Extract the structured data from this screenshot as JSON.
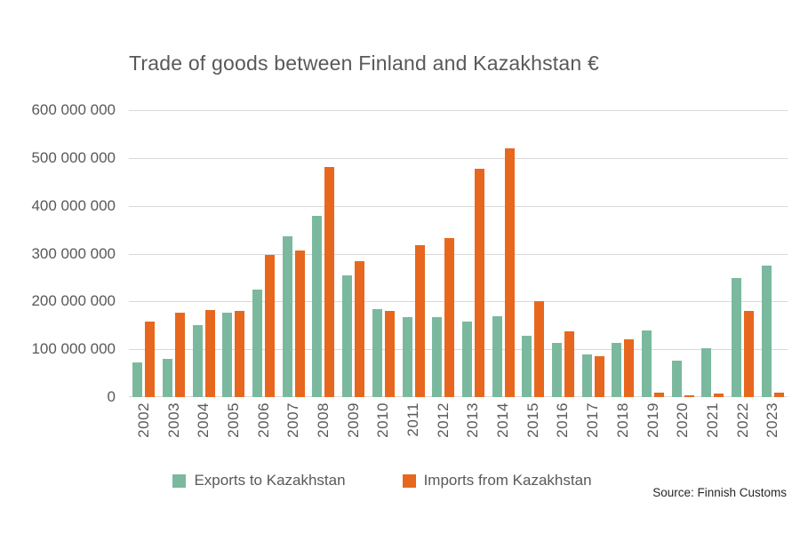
{
  "title": "Trade of goods between Finland and Kazakhstan €",
  "source_note": "Source: Finnish Customs",
  "colors": {
    "exports": "#7ab99e",
    "imports": "#e8671e",
    "gridline": "#d9d9d9",
    "text_gray": "#595959",
    "source_text": "#262626"
  },
  "legend": {
    "items": [
      {
        "label": "Exports to Kazakhstan",
        "color": "#7ab99e"
      },
      {
        "label": "Imports from Kazakhstan",
        "color": "#e8671e"
      }
    ],
    "position": "bottom"
  },
  "chart_data": {
    "type": "bar",
    "title": "Trade of goods between Finland and Kazakhstan €",
    "xlabel": "",
    "ylabel": "",
    "ylim": [
      0,
      600000000
    ],
    "grid": true,
    "legend_position": "bottom",
    "yticks": [
      {
        "value": 0,
        "label": "0"
      },
      {
        "value": 100000000,
        "label": "100 000 000"
      },
      {
        "value": 200000000,
        "label": "200 000 000"
      },
      {
        "value": 300000000,
        "label": "300 000 000"
      },
      {
        "value": 400000000,
        "label": "400 000 000"
      },
      {
        "value": 500000000,
        "label": "500 000 000"
      },
      {
        "value": 600000000,
        "label": "600 000 000"
      }
    ],
    "categories": [
      "2002",
      "2003",
      "2004",
      "2005",
      "2006",
      "2007",
      "2008",
      "2009",
      "2010",
      "2011",
      "2012",
      "2013",
      "2014",
      "2015",
      "2016",
      "2017",
      "2018",
      "2019",
      "2020",
      "2021",
      "2022",
      "2023"
    ],
    "series": [
      {
        "name": "Exports to Kazakhstan",
        "color": "#7ab99e",
        "values": [
          72000000,
          80000000,
          151000000,
          176000000,
          224000000,
          336000000,
          379000000,
          254000000,
          184000000,
          168000000,
          168000000,
          157000000,
          169000000,
          128000000,
          113000000,
          90000000,
          113000000,
          139000000,
          77000000,
          103000000,
          249000000,
          275000000
        ]
      },
      {
        "name": "Imports from Kazakhstan",
        "color": "#e8671e",
        "values": [
          158000000,
          177000000,
          183000000,
          180000000,
          297000000,
          307000000,
          481000000,
          284000000,
          181000000,
          317000000,
          332000000,
          478000000,
          520000000,
          200000000,
          137000000,
          85000000,
          120000000,
          10000000,
          4000000,
          8000000,
          180000000,
          9000000
        ]
      }
    ]
  }
}
